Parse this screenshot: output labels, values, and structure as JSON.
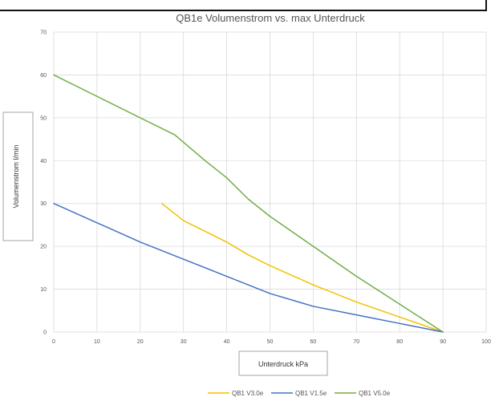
{
  "chart_data": {
    "type": "line",
    "title": "QB1e Volumenstrom vs. max Unterdruck",
    "xlabel": "Unterdruck kPa",
    "ylabel": "Volumenstrom l/min",
    "xlim": [
      0,
      100
    ],
    "ylim": [
      0,
      70
    ],
    "x_ticks": [
      "0",
      "10",
      "20",
      "30",
      "40",
      "50",
      "60",
      "70",
      "80",
      "90",
      "100"
    ],
    "y_ticks": [
      "0",
      "10",
      "20",
      "30",
      "40",
      "50",
      "60",
      "70"
    ],
    "grid": true,
    "legend_position": "bottom",
    "series": [
      {
        "name": "QB1 V3.0e",
        "color": "#f2c200",
        "x": [
          25,
          30,
          35,
          40,
          45,
          50,
          60,
          70,
          80,
          90
        ],
        "y": [
          30,
          26,
          23.5,
          21,
          18,
          15.5,
          11,
          7,
          3.5,
          0
        ]
      },
      {
        "name": "QB1 V1.5e",
        "color": "#4472c4",
        "x": [
          0,
          10,
          20,
          30,
          40,
          50,
          60,
          70,
          80,
          90
        ],
        "y": [
          30,
          25.5,
          21,
          17,
          13,
          9,
          6,
          4,
          2,
          0
        ]
      },
      {
        "name": "QB1 V5.0e",
        "color": "#70ad47",
        "x": [
          0,
          10,
          20,
          28,
          35,
          40,
          45,
          50,
          60,
          70,
          80,
          90
        ],
        "y": [
          60,
          55,
          50,
          46,
          40,
          36,
          31,
          27,
          20,
          13,
          6.5,
          0
        ]
      }
    ]
  }
}
